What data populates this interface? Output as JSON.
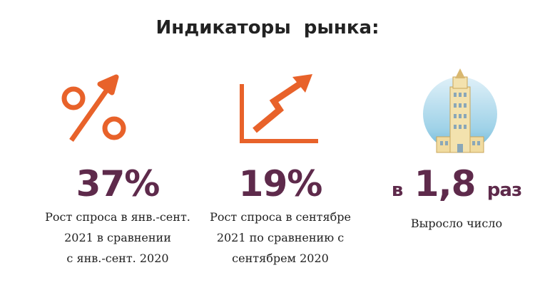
{
  "title": "Индикаторы  рынка:",
  "items": [
    {
      "value": "37%",
      "description": [
        "Рост спроса в янв.-сент.",
        "2021 в сравнении",
        "с янв.-сент. 2020"
      ]
    },
    {
      "value": "19%",
      "description": [
        "Рост спроса в сентябре",
        "2021 по сравнению с",
        "сентябрем 2020"
      ]
    },
    {
      "prefix": "в",
      "value": "1,8",
      "suffix": "раз",
      "description": [
        "Выросло число"
      ]
    }
  ]
}
